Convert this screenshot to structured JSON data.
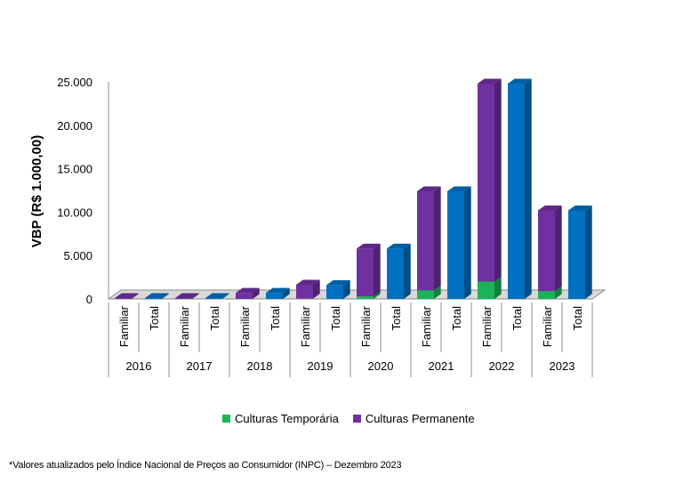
{
  "chart_data": {
    "type": "bar",
    "subtype": "stacked-3d-grouped",
    "ylabel": "VBP (R$ 1.000,00)",
    "ylim": [
      0,
      25000
    ],
    "yticks": [
      0,
      5000,
      10000,
      15000,
      20000,
      25000
    ],
    "ytick_labels": [
      "0",
      "5.000",
      "10.000",
      "15.000",
      "20.000",
      "25.000"
    ],
    "groups": [
      "2016",
      "2017",
      "2018",
      "2019",
      "2020",
      "2021",
      "2022",
      "2023"
    ],
    "subcategories": [
      "Familiar",
      "Total"
    ],
    "series": [
      {
        "name": "Culturas Temporária",
        "color": "#19b45a",
        "values": [
          0,
          0,
          0,
          0,
          0,
          0,
          40,
          0,
          300,
          0,
          1000,
          0,
          2000,
          0,
          900,
          0
        ]
      },
      {
        "name": "Culturas Permanente",
        "color": "#7030a0",
        "values": [
          100,
          0,
          100,
          0,
          700,
          0,
          1600,
          0,
          5500,
          0,
          11400,
          0,
          22800,
          0,
          9300,
          0
        ]
      },
      {
        "name": "Total",
        "color": "#0070c0",
        "legend": false,
        "values": [
          0,
          100,
          0,
          100,
          0,
          700,
          0,
          1600,
          0,
          5800,
          0,
          12400,
          0,
          24800,
          0,
          10200
        ]
      }
    ],
    "legend_position": "bottom-center",
    "grid": false
  },
  "footnote": "*Valores atualizados pelo Índice Nacional de Preços ao Consumidor (INPC) – Dezembro 2023"
}
